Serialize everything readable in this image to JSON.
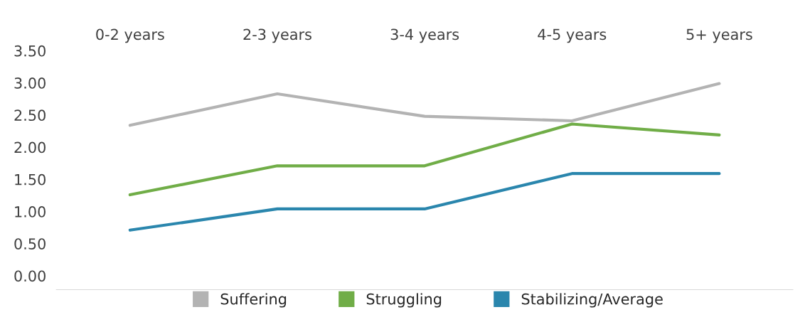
{
  "chart_data": {
    "type": "line",
    "categories": [
      "0-2 years",
      "2-3 years",
      "3-4 years",
      "4-5 years",
      "5+ years"
    ],
    "series": [
      {
        "name": "Suffering",
        "color": "#b3b3b3",
        "values": [
          2.34,
          2.83,
          2.48,
          2.41,
          2.99
        ]
      },
      {
        "name": "Struggling",
        "color": "#70ad47",
        "values": [
          1.26,
          1.71,
          1.71,
          2.36,
          2.19
        ]
      },
      {
        "name": "Stabilizing/Average",
        "color": "#2a86ad",
        "values": [
          0.71,
          1.04,
          1.04,
          1.59,
          1.59
        ]
      }
    ],
    "ylim": [
      0,
      3.5
    ],
    "yticks": [
      {
        "value": 0,
        "label": "0.00"
      },
      {
        "value": 0.5,
        "label": "0.50"
      },
      {
        "value": 1,
        "label": "1.00"
      },
      {
        "value": 1.5,
        "label": "1.50"
      },
      {
        "value": 2,
        "label": "2.00"
      },
      {
        "value": 2.5,
        "label": "2.50"
      },
      {
        "value": 3,
        "label": "3.00"
      },
      {
        "value": 3.5,
        "label": "3.50"
      }
    ],
    "grid": false,
    "legend": "bottom",
    "marker": "none",
    "line_style": "solid"
  }
}
